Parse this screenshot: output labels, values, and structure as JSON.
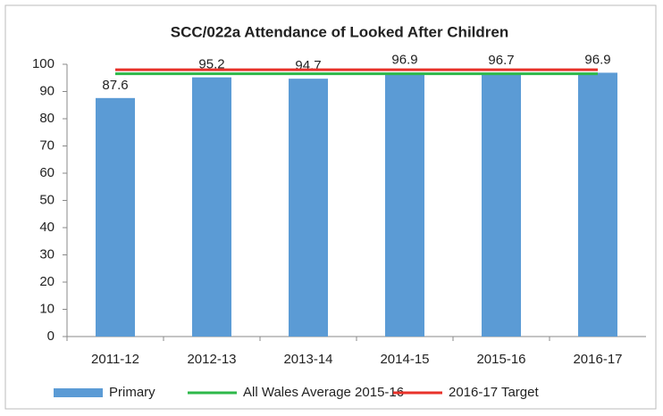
{
  "chart_data": {
    "type": "bar",
    "title": "SCC/022a Attendance of Looked After Children",
    "categories": [
      "2011-12",
      "2012-13",
      "2013-14",
      "2014-15",
      "2015-16",
      "2016-17"
    ],
    "series": [
      {
        "name": "Primary",
        "type": "bar",
        "color": "#5b9bd5",
        "values": [
          87.6,
          95.2,
          94.7,
          96.9,
          96.7,
          96.9
        ]
      },
      {
        "name": "All Wales Average 2015-16",
        "type": "line",
        "color": "#2eb84a",
        "values": [
          96.5,
          96.5,
          96.5,
          96.5,
          96.5,
          96.5
        ]
      },
      {
        "name": "2016-17 Target",
        "type": "line",
        "color": "#e8322a",
        "values": [
          98,
          98,
          98,
          98,
          98,
          98
        ]
      }
    ],
    "data_labels": true,
    "ylim": [
      0,
      100
    ],
    "yticks": [
      0,
      10,
      20,
      30,
      40,
      50,
      60,
      70,
      80,
      90,
      100
    ],
    "grid": false,
    "legend": "bottom"
  }
}
